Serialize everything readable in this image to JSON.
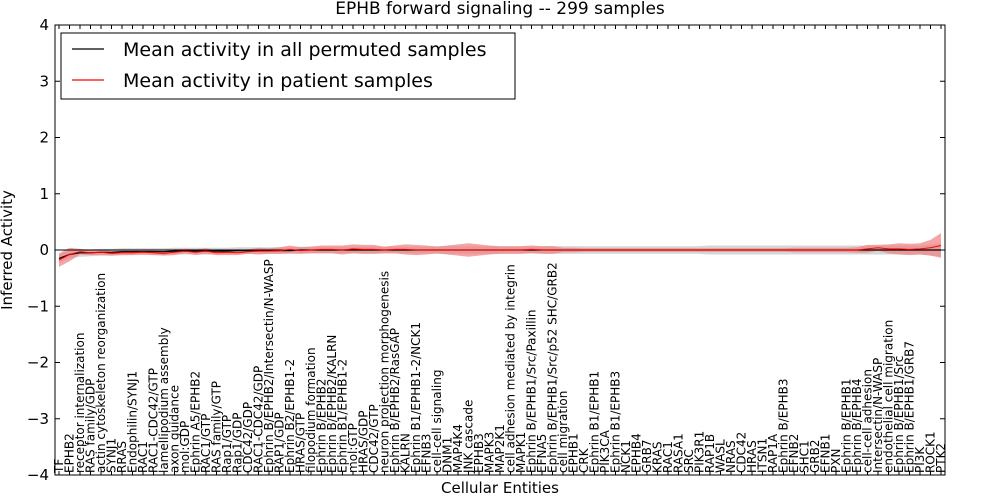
{
  "chart_data": {
    "type": "line",
    "title": "EPHB forward signaling -- 299 samples",
    "xlabel": "Cellular Entities",
    "ylabel": "Inferred Activity",
    "ylim": [
      -4,
      4
    ],
    "yticks": [
      -4,
      -3,
      -2,
      -1,
      0,
      1,
      2,
      3,
      4
    ],
    "ytick_labels": [
      "−4",
      "−3",
      "−2",
      "−1",
      "0",
      "1",
      "2",
      "3",
      "4"
    ],
    "legend_position": "top-left",
    "colors": {
      "permuted": "#000000",
      "patient": "#ff0000",
      "patient_band": "#f08080",
      "permuted_band": "#c8c8c8"
    },
    "categories": [
      "TF",
      "EPHB2",
      "receptor internalization",
      "RAS family/GDP",
      "actin cytoskeleton reorganization",
      "SYNJ1",
      "RRAS",
      "Endophilin/SYNJ1",
      "RAC1",
      "RAC1-CDC42/GTP",
      "lamellipodium assembly",
      "axon guidance",
      "mol:GDP",
      "Ephrin A5/EPHB2",
      "RAC1/GTP",
      "RAS family/GTP",
      "Rap1/GTP",
      "Rap1/GDP",
      "CDC42/GDP",
      "RAC1-CDC42/GDP",
      "Ephrin B/EPHB2/Intersectin/N-WASP",
      "RAP1/GDP",
      "Ephrin B2/EPHB1-2",
      "HRAS/GTP",
      "filopodium formation",
      "Ephrin B/EPHB2",
      "Ephrin B/EPHB2/KALRN",
      "Ephrin B1/EPHB1-2",
      "mol:GTP",
      "HRAS/GDP",
      "CDC42/GTP",
      "neuron projection morphogenesis",
      "Ephrin B/EPHB2/RasGAP",
      "KALRN",
      "Ephrin B1/EPHB1-2/NCK1",
      "EFNB3",
      "cell-cell signaling",
      "DNM1",
      "MAP4K4",
      "JNK cascade",
      "EPHB3",
      "MAPK3",
      "MAP2K1",
      "cell adhesion mediated by integrin",
      "MAPK1",
      "Ephrin B/EPHB1/Src/Paxillin",
      "EFNA5",
      "Ephrin B/EPHB1/Src/p52 SHC/GRB2",
      "cell migration",
      "EPHB1",
      "CRK",
      "Ephrin B1/EPHB1",
      "PIK3CA",
      "Ephrin B1/EPHB3",
      "NCK1",
      "EPHB4",
      "GRB7",
      "KRAS",
      "RAC1",
      "RASA1",
      "SRC",
      "PIK3R1",
      "RAP1B",
      "WASL",
      "NRAS",
      "CDC42",
      "HRAS",
      "ITSN1",
      "RAP1A",
      "Ephrin B/EPHB3",
      "EFNB2",
      "SHC1",
      "GRB2",
      "EFNB1",
      "PXN",
      "Ephrin B/EPHB1",
      "Ephrin B/EPHB4",
      "cell-cell adhesion",
      "Intersectin/N-WASP",
      "endothelial cell migration",
      "Ephrin B/EPHB1/Src",
      "Ephrin B/EPHB1/GRB7",
      "PI3K",
      "ROCK1",
      "PTK2"
    ],
    "series": [
      {
        "name": "Mean activity in all permuted samples",
        "color": "#000000",
        "values": [
          -0.15,
          -0.08,
          -0.05,
          -0.05,
          -0.04,
          -0.04,
          -0.03,
          -0.03,
          -0.03,
          -0.03,
          -0.03,
          -0.02,
          -0.02,
          -0.02,
          -0.02,
          -0.02,
          -0.02,
          -0.01,
          -0.01,
          -0.01,
          -0.01,
          -0.01,
          -0.01,
          0,
          0,
          0,
          0,
          0,
          0,
          0,
          0,
          0,
          0,
          0,
          0,
          0,
          0,
          0,
          0,
          0,
          0,
          0,
          0,
          0,
          0,
          0,
          0,
          0,
          0,
          0,
          0,
          0,
          0,
          0,
          0,
          0,
          0,
          0,
          0,
          0,
          0,
          0,
          0,
          0,
          0,
          0,
          0,
          0,
          0,
          0,
          0,
          0,
          0,
          0,
          0,
          0,
          0,
          0,
          0,
          0,
          0,
          0,
          0,
          0,
          0
        ],
        "band": [
          0.07,
          0.07,
          0.07,
          0.06,
          0.06,
          0.06,
          0.06,
          0.06,
          0.06,
          0.06,
          0.06,
          0.06,
          0.06,
          0.06,
          0.06,
          0.06,
          0.06,
          0.06,
          0.06,
          0.06,
          0.06,
          0.06,
          0.06,
          0.06,
          0.06,
          0.06,
          0.06,
          0.06,
          0.06,
          0.06,
          0.06,
          0.06,
          0.06,
          0.06,
          0.06,
          0.06,
          0.07,
          0.07,
          0.07,
          0.07,
          0.07,
          0.07,
          0.06,
          0.06,
          0.06,
          0.06,
          0.06,
          0.07,
          0.07,
          0.07,
          0.07,
          0.07,
          0.07,
          0.07,
          0.07,
          0.07,
          0.07,
          0.07,
          0.07,
          0.07,
          0.07,
          0.07,
          0.08,
          0.08,
          0.08,
          0.08,
          0.08,
          0.08,
          0.08,
          0.08,
          0.08,
          0.08,
          0.08,
          0.08,
          0.08,
          0.08,
          0.08,
          0.08,
          0.08,
          0.08,
          0.08,
          0.08,
          0.08,
          0.1,
          0.12
        ]
      },
      {
        "name": "Mean activity in patient samples",
        "color": "#ff0000",
        "values": [
          -0.18,
          -0.08,
          -0.03,
          -0.05,
          -0.04,
          -0.06,
          -0.05,
          -0.05,
          -0.04,
          -0.05,
          -0.06,
          -0.04,
          -0.02,
          -0.04,
          -0.02,
          -0.05,
          -0.04,
          -0.05,
          -0.03,
          -0.02,
          -0.02,
          -0.01,
          0.01,
          -0.01,
          0,
          0.01,
          0.01,
          0,
          0.02,
          0.01,
          0.01,
          0,
          0.01,
          0.01,
          0,
          0,
          0,
          0,
          0,
          0,
          0,
          0,
          0,
          0,
          0,
          0.01,
          0,
          0,
          0,
          0,
          0,
          0,
          0,
          0,
          0,
          0,
          0,
          0,
          0,
          0,
          0,
          0,
          0,
          0,
          0,
          0,
          0,
          0,
          0,
          0,
          0,
          0,
          0,
          0,
          0,
          0,
          0,
          0.02,
          0.04,
          0.02,
          0.02,
          0.01,
          0.02,
          0.04,
          0.08
        ],
        "band": [
          0.12,
          0.12,
          0.05,
          0.04,
          0.05,
          0.04,
          0.04,
          0.04,
          0.04,
          0.04,
          0.04,
          0.05,
          0.04,
          0.05,
          0.05,
          0.04,
          0.05,
          0.04,
          0.04,
          0.06,
          0.05,
          0.06,
          0.07,
          0.06,
          0.06,
          0.07,
          0.07,
          0.08,
          0.08,
          0.08,
          0.08,
          0.06,
          0.07,
          0.09,
          0.09,
          0.08,
          0.06,
          0.08,
          0.1,
          0.12,
          0.1,
          0.08,
          0.07,
          0.07,
          0.07,
          0.07,
          0.07,
          0.07,
          0.04,
          0.04,
          0.03,
          0.03,
          0.03,
          0.03,
          0.03,
          0.03,
          0.03,
          0.03,
          0.03,
          0.03,
          0.03,
          0.03,
          0.03,
          0.03,
          0.03,
          0.03,
          0.03,
          0.03,
          0.03,
          0.03,
          0.04,
          0.04,
          0.04,
          0.04,
          0.04,
          0.04,
          0.05,
          0.07,
          0.05,
          0.08,
          0.1,
          0.1,
          0.1,
          0.14,
          0.22
        ]
      }
    ]
  }
}
